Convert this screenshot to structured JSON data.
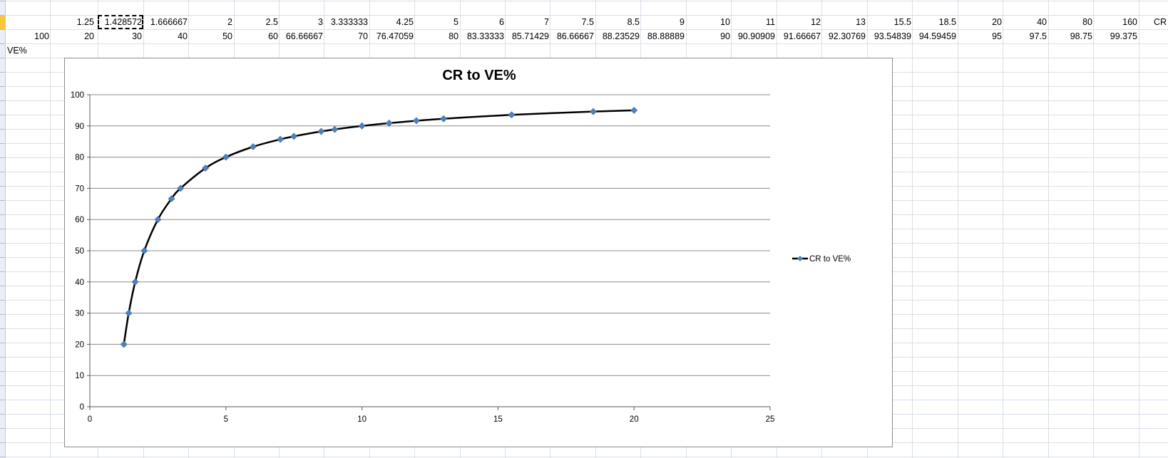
{
  "sheet": {
    "rows": [
      {
        "cells": [
          "",
          "1.25",
          "1.428572",
          "1.666667",
          "2",
          "2.5",
          "3",
          "3.333333",
          "4.25",
          "5",
          "6",
          "7",
          "7.5",
          "8.5",
          "9",
          "10",
          "11",
          "12",
          "13",
          "15.5",
          "18.5",
          "20",
          "40",
          "80",
          "160",
          "CR"
        ]
      },
      {
        "cells": [
          "100",
          "20",
          "30",
          "40",
          "50",
          "60",
          "66.66667",
          "70",
          "76.47059",
          "80",
          "83.33333",
          "85.71429",
          "86.66667",
          "88.23529",
          "88.88889",
          "90",
          "90.90909",
          "91.66667",
          "92.30769",
          "93.54839",
          "94.59459",
          "95",
          "97.5",
          "98.75",
          "99.375",
          ""
        ]
      },
      {
        "cells": [
          "VE%"
        ]
      }
    ],
    "active_cell_value": "1.428572"
  },
  "chart_data": {
    "type": "line",
    "title": "CR to VE%",
    "xlabel": "",
    "ylabel": "",
    "xlim": [
      0,
      25
    ],
    "ylim": [
      0,
      100
    ],
    "xticks": [
      0,
      5,
      10,
      15,
      20,
      25
    ],
    "yticks": [
      0,
      10,
      20,
      30,
      40,
      50,
      60,
      70,
      80,
      90,
      100
    ],
    "grid": "horizontal",
    "legend_position": "right",
    "series": [
      {
        "name": "CR to VE%",
        "color": "#000000",
        "marker": "diamond",
        "marker_color": "#4f81bd",
        "smooth": true,
        "x": [
          1.25,
          1.428572,
          1.666667,
          2,
          2.5,
          3,
          3.333333,
          4.25,
          5,
          6,
          7,
          7.5,
          8.5,
          9,
          10,
          11,
          12,
          13,
          15.5,
          18.5,
          20
        ],
        "y": [
          20,
          30,
          40,
          50,
          60,
          66.66667,
          70,
          76.47059,
          80,
          83.33333,
          85.71429,
          86.66667,
          88.23529,
          88.88889,
          90,
          90.90909,
          91.66667,
          92.30769,
          93.54839,
          94.59459,
          95
        ]
      }
    ]
  }
}
